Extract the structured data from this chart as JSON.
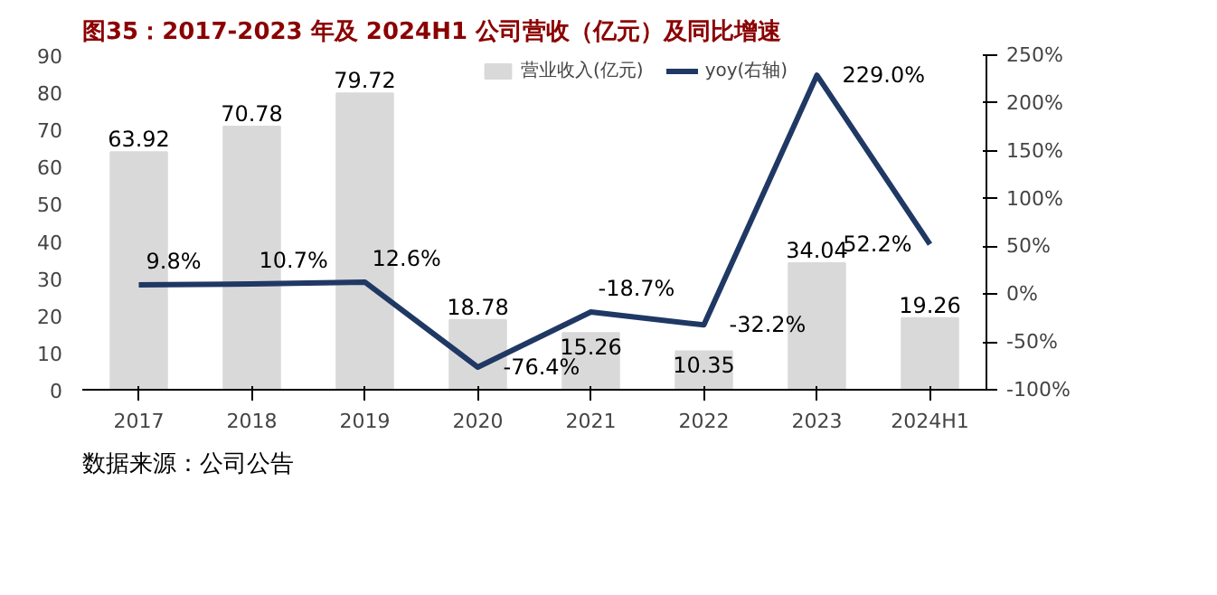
{
  "chart_data": {
    "type": "bar",
    "title": "图35：2017-2023 年及 2024H1 公司营收（亿元）及同比增速",
    "categories": [
      "2017",
      "2018",
      "2019",
      "2020",
      "2021",
      "2022",
      "2023",
      "2024H1"
    ],
    "series": [
      {
        "name": "营业收入(亿元)",
        "color": "#d9d9d9",
        "values": [
          63.92,
          70.78,
          79.72,
          18.78,
          15.26,
          10.35,
          34.04,
          19.26
        ],
        "value_labels": [
          "63.92",
          "70.78",
          "79.72",
          "18.78",
          "15.26",
          "10.35",
          "34.04",
          "19.26"
        ]
      },
      {
        "name": "yoy(右轴)",
        "type": "line",
        "axis": "y2",
        "color": "#1f3864",
        "values": [
          9.8,
          10.7,
          12.6,
          -76.4,
          -18.7,
          -32.2,
          229.0,
          52.2
        ],
        "value_labels": [
          "9.8%",
          "10.7%",
          "12.6%",
          "-76.4%",
          "-18.7%",
          "-32.2%",
          "229.0%",
          "52.2%"
        ]
      }
    ],
    "ylim": [
      0,
      90
    ],
    "yticks": [
      0,
      10,
      20,
      30,
      40,
      50,
      60,
      70,
      80,
      90
    ],
    "y2lim": [
      -100,
      250
    ],
    "y2ticks": [
      {
        "value": -100,
        "label": "-100%"
      },
      {
        "value": -50,
        "label": "-50%"
      },
      {
        "value": 0,
        "label": "0%"
      },
      {
        "value": 50,
        "label": "50%"
      },
      {
        "value": 100,
        "label": "100%"
      },
      {
        "value": 150,
        "label": "150%"
      },
      {
        "value": 200,
        "label": "200%"
      },
      {
        "value": 250,
        "label": "250%"
      }
    ],
    "grid": false,
    "legend": "top",
    "marker": "none",
    "line_style": "solid",
    "annotations": [
      "数据来源：公司公告"
    ]
  }
}
